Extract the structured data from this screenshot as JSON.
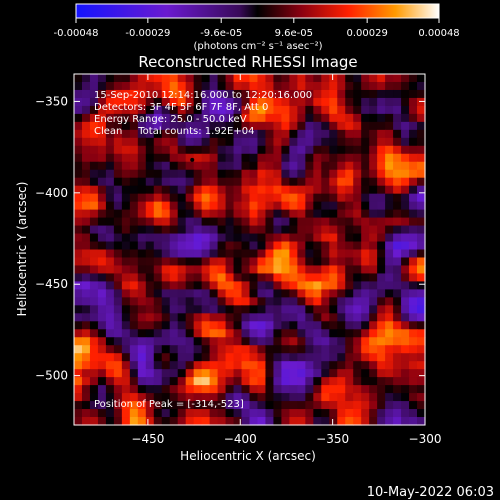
{
  "colorbar": {
    "tick_labels": [
      "-0.00048",
      "-0.00029",
      "-9.6e-05",
      "9.6e-05",
      "0.00029",
      "0.00048"
    ],
    "tick_values": [
      -0.00048,
      -0.00029,
      -9.6e-05,
      9.6e-05,
      0.00029,
      0.00048
    ],
    "range": [
      -0.00048,
      0.00048
    ],
    "unit_label": "(photons cm⁻² s⁻¹ asec⁻²)"
  },
  "chart_data": {
    "type": "heatmap",
    "title": "Reconstructed RHESSI Image",
    "xlabel": "Heliocentric X (arcsec)",
    "ylabel": "Heliocentric Y (arcsec)",
    "xlim": [
      -490,
      -300
    ],
    "ylim": [
      -527,
      -335
    ],
    "x_ticks": [
      -450,
      -400,
      -350,
      -300
    ],
    "y_ticks": [
      -350,
      -400,
      -450,
      -500
    ],
    "x_tick_labels": [
      "−450",
      "−400",
      "−350",
      "−300"
    ],
    "y_tick_labels": [
      "−350",
      "−400",
      "−450",
      "−500"
    ],
    "annotations": [
      "15-Sep-2010 12:14:16.000 to 12:20:16.000",
      "Detectors: 3F 4F 5F 6F 7F 8F, Att 0",
      "Energy Range: 25.0 - 50.0 keV",
      "Clean     Total counts: 1.92E+04"
    ],
    "peak_label": "Position of Peak = [-314,-523]",
    "peak_position": [
      -314,
      -523
    ],
    "marker_position": [
      -426,
      -382
    ]
  },
  "footer": {
    "timestamp": "10-May-2022 06:03"
  }
}
